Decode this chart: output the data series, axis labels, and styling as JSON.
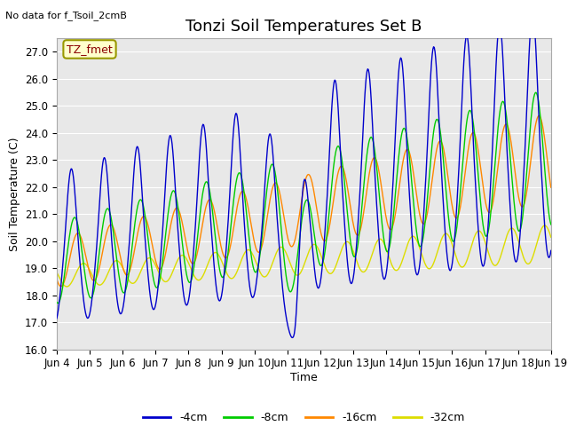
{
  "title": "Tonzi Soil Temperatures Set B",
  "xlabel": "Time",
  "ylabel": "Soil Temperature (C)",
  "no_data_text": "No data for f_Tsoil_2cmB",
  "annotation_text": "TZ_fmet",
  "ylim": [
    16.0,
    27.5
  ],
  "yticks": [
    16.0,
    17.0,
    18.0,
    19.0,
    20.0,
    21.0,
    22.0,
    23.0,
    24.0,
    25.0,
    26.0,
    27.0
  ],
  "xtick_labels": [
    "Jun 4",
    "Jun 5",
    "Jun 6",
    "Jun 7",
    "Jun 8",
    "Jun 9",
    "Jun 10",
    "Jun 11",
    "Jun 12",
    "Jun 13",
    "Jun 14",
    "Jun 15",
    "Jun 16",
    "Jun 17",
    "Jun 18",
    "Jun 19"
  ],
  "colors": {
    "4cm": "#0000cc",
    "8cm": "#00cc00",
    "16cm": "#ff8800",
    "32cm": "#dddd00"
  },
  "legend_labels": [
    "-4cm",
    "-8cm",
    "-16cm",
    "-32cm"
  ],
  "background_color": "#e8e8e8",
  "grid_color": "#ffffff",
  "title_fontsize": 13,
  "axis_fontsize": 9,
  "tick_fontsize": 8.5
}
